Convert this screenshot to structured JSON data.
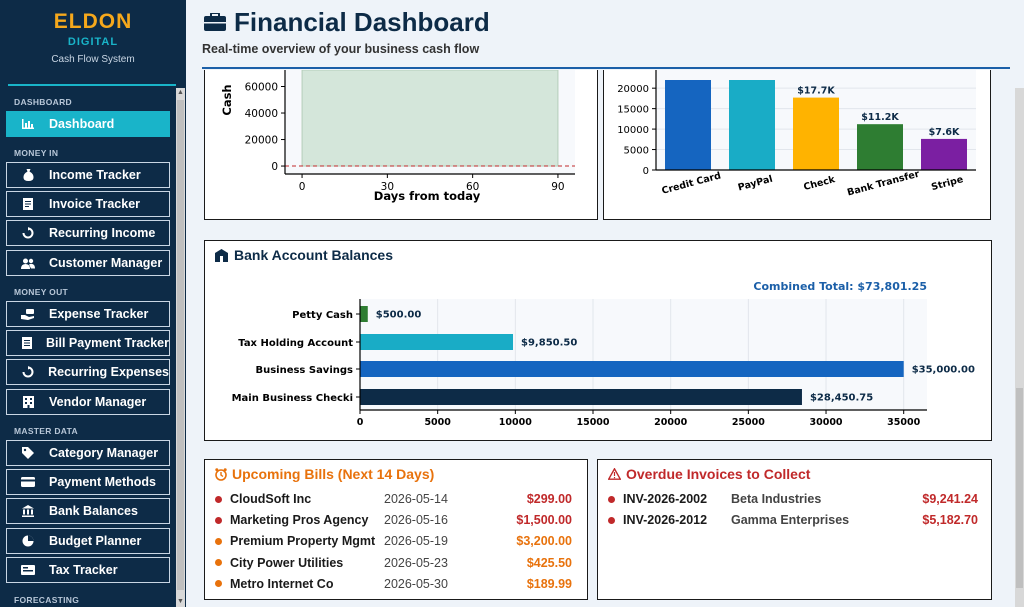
{
  "brand": {
    "name": "ELDON",
    "sub": "DIGITAL",
    "tagline": "Cash Flow System"
  },
  "sidebar": {
    "sections": [
      {
        "label": "DASHBOARD",
        "items": [
          {
            "label": "Dashboard",
            "icon": "bar-chart-icon",
            "active": true
          }
        ]
      },
      {
        "label": "MONEY IN",
        "items": [
          {
            "label": "Income Tracker",
            "icon": "money-bag-icon"
          },
          {
            "label": "Invoice Tracker",
            "icon": "invoice-icon"
          },
          {
            "label": "Recurring Income",
            "icon": "recurring-icon"
          },
          {
            "label": "Customer Manager",
            "icon": "users-icon"
          }
        ]
      },
      {
        "label": "MONEY OUT",
        "items": [
          {
            "label": "Expense Tracker",
            "icon": "hand-money-icon"
          },
          {
            "label": "Bill Payment Tracker",
            "icon": "bill-icon"
          },
          {
            "label": "Recurring Expenses",
            "icon": "recurring-icon"
          },
          {
            "label": "Vendor Manager",
            "icon": "building-icon"
          }
        ]
      },
      {
        "label": "MASTER DATA",
        "items": [
          {
            "label": "Category Manager",
            "icon": "category-icon"
          },
          {
            "label": "Payment Methods",
            "icon": "credit-card-icon"
          },
          {
            "label": "Bank Balances",
            "icon": "bank-icon"
          },
          {
            "label": "Budget Planner",
            "icon": "budget-icon"
          },
          {
            "label": "Tax Tracker",
            "icon": "tax-icon"
          }
        ]
      },
      {
        "label": "FORECASTING",
        "items": []
      }
    ]
  },
  "header": {
    "title": "Financial Dashboard",
    "subtitle": "Real-time overview of your business cash flow"
  },
  "forecast_chart": {
    "ylabel": "Cash",
    "xlabel": "Days from today",
    "yticks": [
      "0",
      "20000",
      "40000",
      "60000"
    ],
    "xticks": [
      "0",
      "30",
      "60",
      "90"
    ]
  },
  "payment_chart": {
    "yticks": [
      "0",
      "5000",
      "10000",
      "15000",
      "20000"
    ]
  },
  "bank_panel": {
    "title": "Bank Account Balances",
    "combined_total": "Combined Total: $73,801.25"
  },
  "bills_panel": {
    "title": "Upcoming Bills (Next 14 Days)",
    "rows": [
      {
        "name": "CloudSoft Inc",
        "date": "2026-05-14",
        "amount": "$299.00",
        "color": "#c0292a"
      },
      {
        "name": "Marketing Pros Agency",
        "date": "2026-05-16",
        "amount": "$1,500.00",
        "color": "#c0292a"
      },
      {
        "name": "Premium Property Mgmt",
        "date": "2026-05-19",
        "amount": "$3,200.00",
        "color": "#e8720c"
      },
      {
        "name": "City Power Utilities",
        "date": "2026-05-23",
        "amount": "$425.50",
        "color": "#e8720c"
      },
      {
        "name": "Metro Internet Co",
        "date": "2026-05-30",
        "amount": "$189.99",
        "color": "#e8720c"
      }
    ]
  },
  "overdue_panel": {
    "title": "Overdue Invoices to Collect",
    "rows": [
      {
        "invoice": "INV-2026-2002",
        "client": "Beta Industries",
        "amount": "$9,241.24"
      },
      {
        "invoice": "INV-2026-2012",
        "client": "Gamma Enterprises",
        "amount": "$5,182.70"
      }
    ]
  },
  "chart_data": [
    {
      "type": "area",
      "xlabel": "Days from today",
      "ylabel": "Cash",
      "xlim": [
        -6,
        96
      ],
      "ylim": [
        -6000,
        80000
      ],
      "x": [
        0,
        90
      ],
      "y": [
        80000,
        80000
      ],
      "reference_line": 0,
      "fill_color": "#d4e6da"
    },
    {
      "type": "bar",
      "categories": [
        "Credit Card",
        "PayPal",
        "Check",
        "Bank Transfer",
        "Stripe"
      ],
      "values": [
        22000,
        22000,
        17700,
        11200,
        7600
      ],
      "labels": [
        "",
        "",
        "$17.7K",
        "$11.2K",
        "$7.6K"
      ],
      "colors": [
        "#1565c0",
        "#19acc6",
        "#ffb300",
        "#2e7d32",
        "#7b1fa2"
      ],
      "ylim": [
        0,
        22000
      ]
    },
    {
      "type": "bar",
      "orientation": "horizontal",
      "categories": [
        "Petty Cash",
        "Tax Holding Account",
        "Business Savings",
        "Main Business Checki"
      ],
      "values": [
        500,
        9850.5,
        35000,
        28450.75
      ],
      "labels": [
        "$500.00",
        "$9,850.50",
        "$35,000.00",
        "$28,450.75"
      ],
      "colors": [
        "#2e7d32",
        "#19acc6",
        "#1565c0",
        "#0d2b47"
      ],
      "xticks": [
        0,
        5000,
        10000,
        15000,
        20000,
        25000,
        30000,
        35000
      ],
      "xlim": [
        0,
        36500
      ],
      "grid": true
    }
  ]
}
